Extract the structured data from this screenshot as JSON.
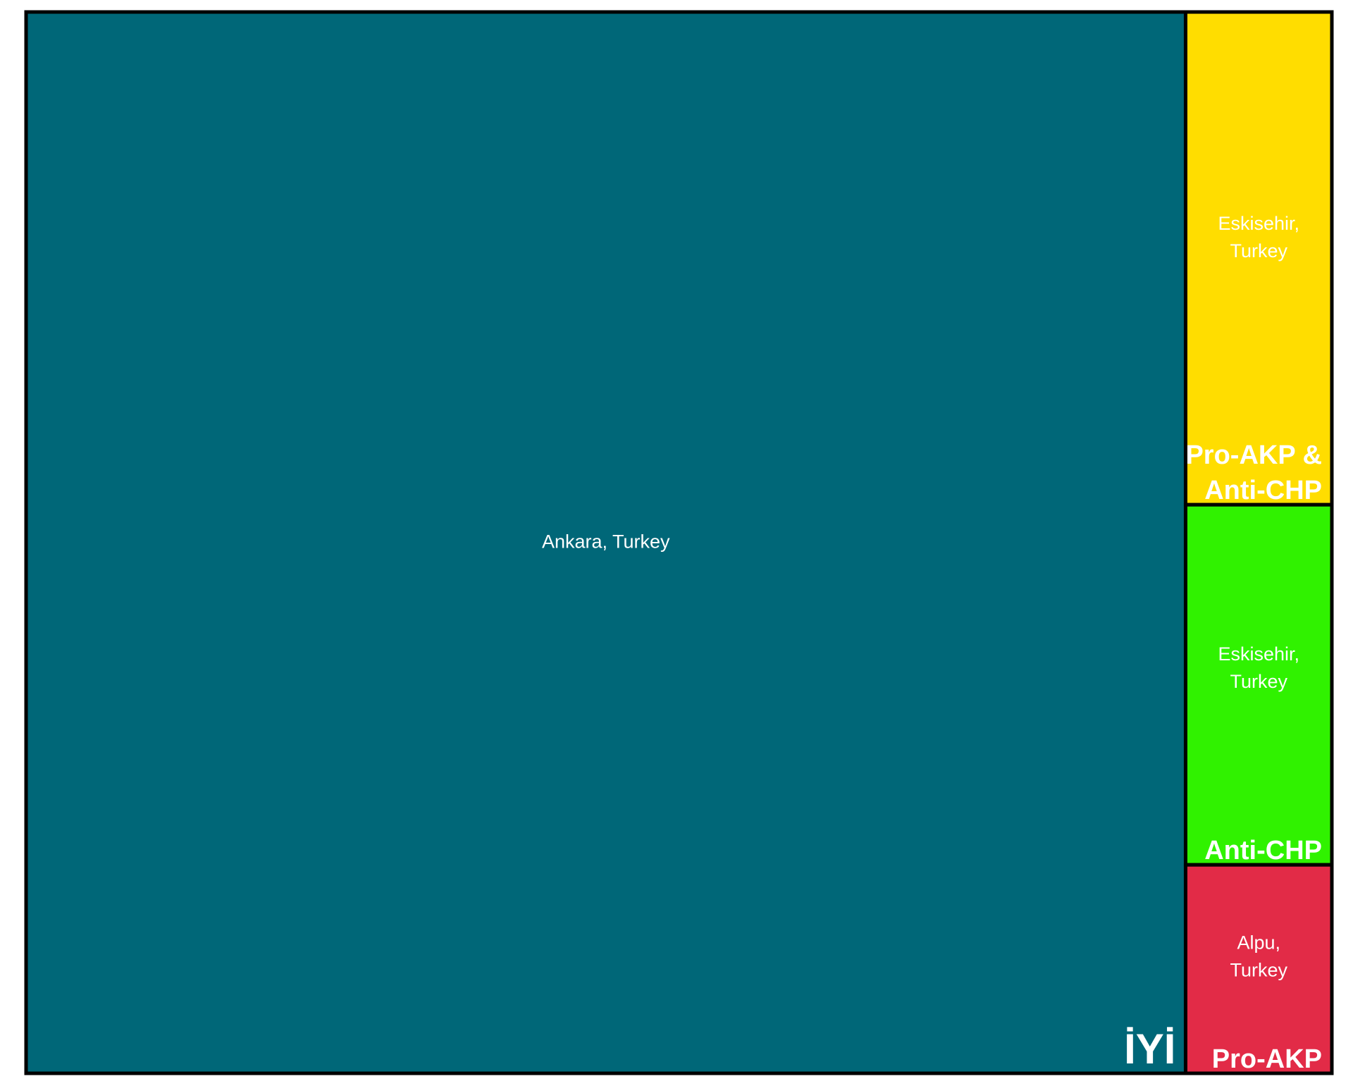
{
  "chart_data": {
    "type": "treemap",
    "title": "",
    "groups": [
      {
        "name": "İYİ",
        "color": "#006778",
        "items": [
          {
            "label": "Ankara, Turkey",
            "value": 88.8
          }
        ]
      },
      {
        "name": "Pro-AKP & Anti-CHP",
        "color": "#FFDD00",
        "items": [
          {
            "label": "Eskisehir, Turkey",
            "value": 5.2
          }
        ]
      },
      {
        "name": "Anti-CHP",
        "color": "#30F200",
        "items": [
          {
            "label": "Eskisehir, Turkey",
            "value": 3.8
          }
        ]
      },
      {
        "name": "Pro-AKP",
        "color": "#E22B47",
        "items": [
          {
            "label": "Alpu, Turkey",
            "value": 2.2
          }
        ]
      }
    ],
    "border_color": "#000000",
    "label_color": "#ffffff"
  }
}
